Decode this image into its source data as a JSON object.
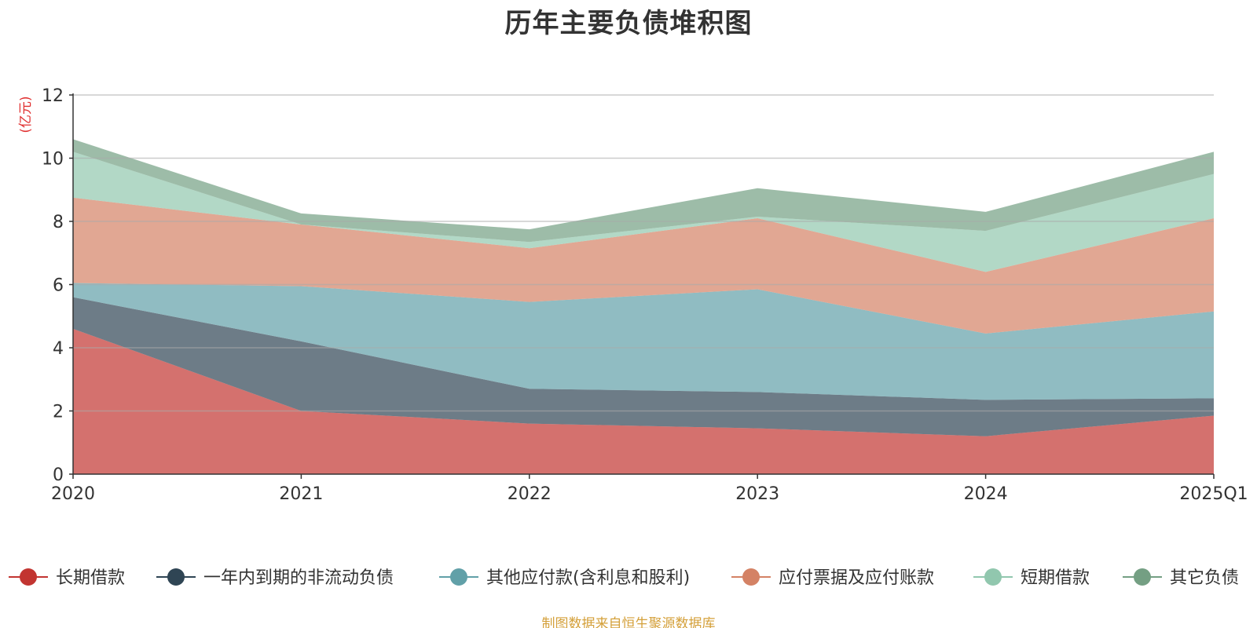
{
  "chart_data": {
    "type": "area",
    "title": "历年主要负债堆积图",
    "unit_label": "(亿元)",
    "categories": [
      "2020",
      "2021",
      "2022",
      "2023",
      "2024",
      "2025Q1"
    ],
    "y_ticks": [
      "0",
      "2",
      "4",
      "6",
      "8",
      "10",
      "12"
    ],
    "ylim": [
      0,
      12
    ],
    "stacked": true,
    "grid": true,
    "legend_position": "bottom",
    "series": [
      {
        "name": "长期借款",
        "color": "#c23531",
        "values": [
          4.6,
          2.0,
          1.6,
          1.45,
          1.2,
          1.85
        ]
      },
      {
        "name": "一年内到期的非流动负债",
        "color": "#2f4554",
        "values": [
          1.0,
          2.2,
          1.1,
          1.15,
          1.15,
          0.55
        ]
      },
      {
        "name": "其他应付款(含利息和股利)",
        "color": "#61a0a8",
        "values": [
          0.45,
          1.75,
          2.75,
          3.25,
          2.1,
          2.75
        ]
      },
      {
        "name": "应付票据及应付账款",
        "color": "#d48265",
        "values": [
          2.7,
          1.95,
          1.7,
          2.25,
          1.95,
          2.95
        ]
      },
      {
        "name": "短期借款",
        "color": "#91c7ae",
        "values": [
          1.45,
          0.0,
          0.2,
          0.05,
          1.3,
          1.4
        ]
      },
      {
        "name": "其它负债",
        "color": "#749f83",
        "values": [
          0.4,
          0.35,
          0.4,
          0.9,
          0.6,
          0.7
        ]
      }
    ]
  },
  "source_note": "制图数据来自恒生聚源数据库"
}
